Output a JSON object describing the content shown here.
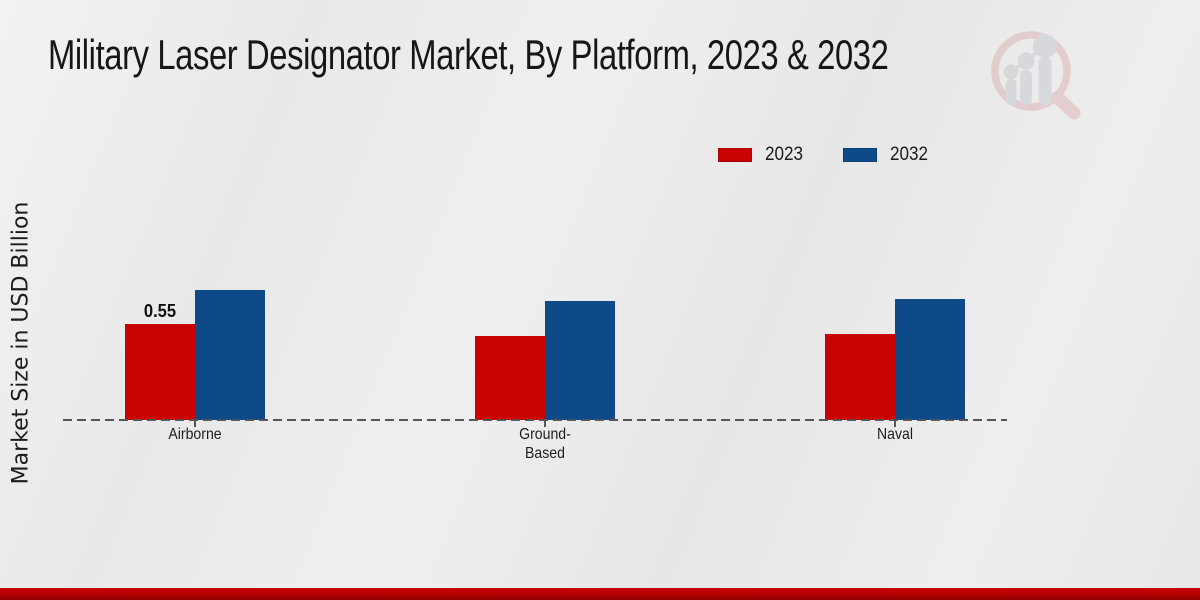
{
  "header": {
    "title": "Military Laser Designator Market, By Platform, 2023 & 2032"
  },
  "icons": {
    "watermark": "magnifier-growth-chart-logo-icon"
  },
  "colors": {
    "series_2023": "#c90303",
    "series_2032": "#0d4a87",
    "baseline": "#565656",
    "footer_band": "#b30303",
    "background": "#eaeaea"
  },
  "chart_data": {
    "type": "bar",
    "title": "Military Laser Designator Market, By Platform, 2023 & 2032",
    "xlabel": "",
    "ylabel": "Market Size in USD Billion",
    "categories": [
      "Airborne",
      "Ground-Based",
      "Naval"
    ],
    "category_display_lines": [
      [
        "Airborne"
      ],
      [
        "Ground-",
        "Based"
      ],
      [
        "Naval"
      ]
    ],
    "series": [
      {
        "name": "2023",
        "color": "#c90303",
        "values": [
          0.55,
          0.48,
          0.49
        ]
      },
      {
        "name": "2032",
        "color": "#0d4a87",
        "values": [
          0.74,
          0.68,
          0.69
        ]
      }
    ],
    "value_labels": [
      {
        "series_index": 0,
        "category_index": 0,
        "text": "0.55"
      }
    ],
    "ylim": [
      0,
      1
    ],
    "grid": false,
    "legend_position": "top-right",
    "baseline_style": "dashed",
    "y_axis_ticks_visible": false
  }
}
